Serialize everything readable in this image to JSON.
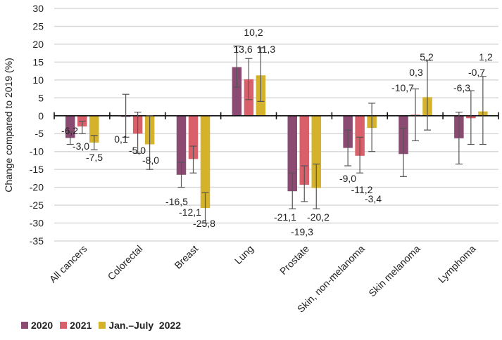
{
  "chart_data": {
    "type": "bar",
    "title": "",
    "xlabel": "",
    "ylabel": "Change compared to 2019 (%)",
    "ylim": [
      -35,
      30
    ],
    "yticks": [
      30,
      25,
      20,
      15,
      10,
      5,
      0,
      -5,
      -10,
      -15,
      -20,
      -25,
      -30,
      -35
    ],
    "grid": true,
    "legend_position": "bottom-left",
    "categories": [
      "All cancers",
      "Colorectal",
      "Breast",
      "Lung",
      "Prostate",
      "Skin, non-melanoma",
      "Skin melanoma",
      "Lymphoma"
    ],
    "series": [
      {
        "name": "2020",
        "color": "#8a4a72",
        "values": [
          -6.2,
          0.1,
          -16.5,
          13.6,
          -21.1,
          -9.0,
          -10.7,
          -6.3
        ],
        "labels": [
          "-6,2",
          "0,1",
          "-16,5",
          "13,6",
          "-21,1",
          "-9,0",
          "-10,7",
          "-6,3"
        ],
        "error_low": [
          -8,
          -6,
          -20,
          8,
          -26,
          -14,
          -17,
          -13.5
        ],
        "error_high": [
          -4.5,
          6,
          -13,
          19.5,
          -16,
          -4,
          -3.5,
          1
        ]
      },
      {
        "name": "2021",
        "color": "#d9606a",
        "values": [
          -3.0,
          -5.0,
          -12.1,
          10.2,
          -19.3,
          -11.2,
          0.3,
          -0.7
        ],
        "labels": [
          "-3,0",
          "-5,0",
          "-12,1",
          "10,2",
          "-19,3",
          "-11,2",
          "0,3",
          "-0,7"
        ],
        "error_low": [
          -5,
          -10.5,
          -16,
          4.5,
          -24,
          -16,
          -7,
          -8
        ],
        "error_high": [
          -1.5,
          1,
          -8.5,
          16,
          -14,
          -6,
          7.5,
          7
        ]
      },
      {
        "name": "Jan.–July  2022",
        "color": "#d4b22c",
        "values": [
          -7.5,
          -8.0,
          -25.8,
          11.3,
          -20.2,
          -3.4,
          5.2,
          1.2
        ],
        "labels": [
          "-7,5",
          "-8,0",
          "-25,8",
          "11,3",
          "-20,2",
          "-3,4",
          "5,2",
          "1,2"
        ],
        "error_low": [
          -9.5,
          -15,
          -30,
          4,
          -26,
          -10,
          -4,
          -8
        ],
        "error_high": [
          -5.5,
          0,
          -21.5,
          19,
          -13.5,
          3.5,
          15.5,
          11
        ]
      }
    ]
  },
  "legend": {
    "items": [
      {
        "label": "2020",
        "color": "#8a4a72"
      },
      {
        "label": "2021",
        "color": "#d9606a"
      },
      {
        "label": "Jan.–July  2022",
        "color": "#d4b22c"
      }
    ]
  }
}
